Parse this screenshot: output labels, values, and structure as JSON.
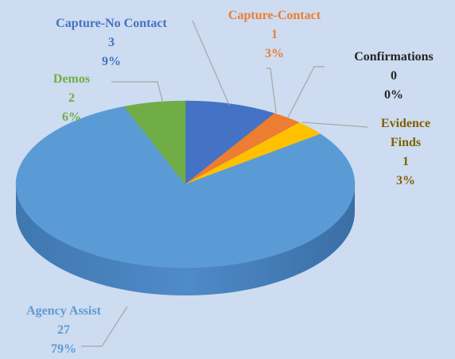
{
  "chart_data": {
    "type": "pie3d",
    "categories": [
      "Capture-No Contact",
      "Capture-Contact",
      "Confirmations",
      "Evidence Finds",
      "Agency Assist",
      "Demos"
    ],
    "values": [
      3,
      1,
      0,
      1,
      27,
      2
    ],
    "percent_labels": [
      "9%",
      "3%",
      "0%",
      "3%",
      "79%",
      "6%"
    ],
    "colors": [
      "#4472c4",
      "#ed7d31",
      "#a5a5a5",
      "#ffc000",
      "#5b9bd5",
      "#70ad47"
    ],
    "label_colors": [
      "#4472c4",
      "#ed7d31",
      "#262626",
      "#7f6000",
      "#5b9bd5",
      "#70ad47"
    ]
  }
}
